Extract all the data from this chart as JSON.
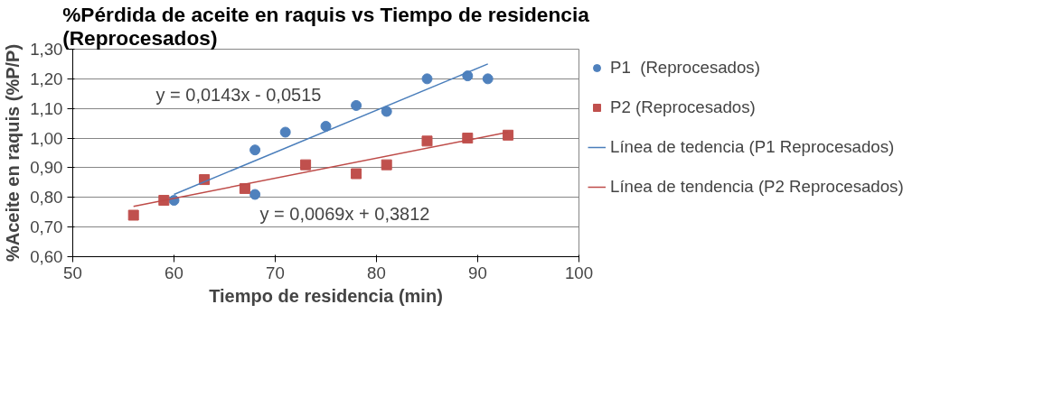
{
  "chart_data": {
    "type": "scatter",
    "title": "%Pérdida de aceite en raquis vs Tiempo de residencia (Reprocesados)",
    "xlabel": "Tiempo de residencia (min)",
    "ylabel": "%Aceite en raquis (%P/P)",
    "xlim": [
      50,
      100
    ],
    "xticks": [
      50,
      60,
      70,
      80,
      90,
      100
    ],
    "ylim": [
      0.6,
      1.3
    ],
    "yticks": [
      {
        "value": 0.6,
        "label": "0,60"
      },
      {
        "value": 0.7,
        "label": "0,70"
      },
      {
        "value": 0.8,
        "label": "0,80"
      },
      {
        "value": 0.9,
        "label": "0,90"
      },
      {
        "value": 1.0,
        "label": "1,00"
      },
      {
        "value": 1.1,
        "label": "1,10"
      },
      {
        "value": 1.2,
        "label": "1,20"
      },
      {
        "value": 1.3,
        "label": "1,30"
      }
    ],
    "grid": "y",
    "legend": "right",
    "series": [
      {
        "name": "P1  (Reprocesados)",
        "marker": "circle",
        "color": "#4f81bd",
        "x": [
          60,
          68,
          68,
          71,
          75,
          78,
          81,
          85,
          89,
          91
        ],
        "values": [
          0.79,
          0.81,
          0.96,
          1.02,
          1.04,
          1.11,
          1.09,
          1.2,
          1.21,
          1.2
        ]
      },
      {
        "name": "P2 (Reprocesados)",
        "marker": "square",
        "color": "#c0504d",
        "x": [
          56,
          59,
          63,
          67,
          73,
          78,
          81,
          85,
          89,
          93
        ],
        "values": [
          0.74,
          0.79,
          0.86,
          0.83,
          0.91,
          0.88,
          0.91,
          0.99,
          1.0,
          1.01
        ]
      },
      {
        "name": "Línea de tedencia (P1 Reprocesados)",
        "type": "line",
        "color": "#4a7ebb",
        "x": [
          60,
          91
        ],
        "values": [
          0.81,
          1.25
        ]
      },
      {
        "name": "Línea de tendencia (P2 Reprocesados)",
        "type": "line",
        "color": "#be4b48",
        "x": [
          56,
          93
        ],
        "values": [
          0.77,
          1.02
        ]
      }
    ],
    "annotations": [
      "y = 0,0143x - 0,0515",
      "y = 0,0069x + 0,3812"
    ]
  }
}
